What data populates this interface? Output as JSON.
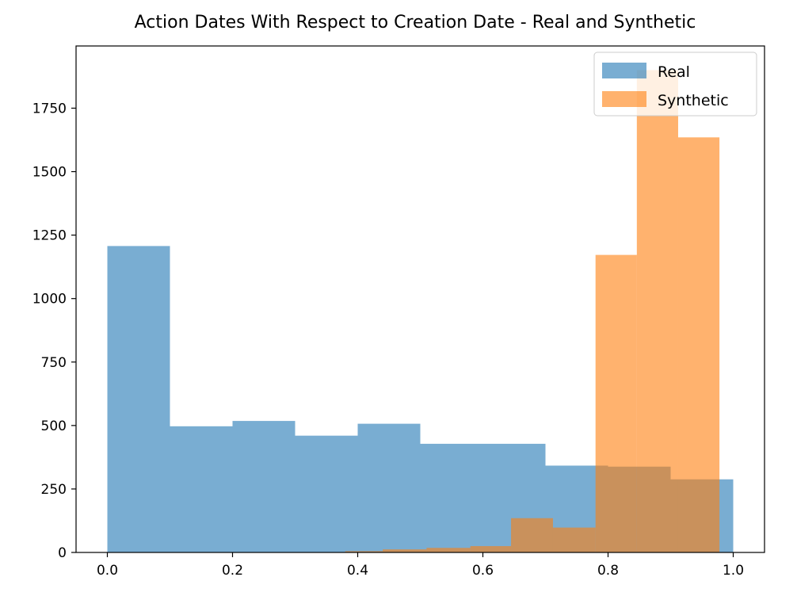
{
  "chart_data": {
    "type": "bar",
    "title": "Action Dates With Respect to Creation Date - Real and Synthetic",
    "xlabel": "",
    "ylabel": "",
    "xlim": [
      -0.05,
      1.05
    ],
    "ylim": [
      0,
      1995
    ],
    "x_ticks": [
      "0.0",
      "0.2",
      "0.4",
      "0.6",
      "0.8",
      "1.0"
    ],
    "y_ticks": [
      "0",
      "250",
      "500",
      "750",
      "1000",
      "1250",
      "1500",
      "1750"
    ],
    "grid": false,
    "legend_position": "top-right",
    "series": [
      {
        "name": "Real",
        "color": "#1f77b4",
        "opacity": 0.6,
        "bin_edges": [
          0.0,
          0.1,
          0.2,
          0.3,
          0.4,
          0.5,
          0.6,
          0.7,
          0.8,
          0.9,
          1.0
        ],
        "values": [
          1207,
          497,
          518,
          460,
          507,
          428,
          428,
          342,
          338,
          288
        ]
      },
      {
        "name": "Synthetic",
        "color": "#ff7f0e",
        "opacity": 0.6,
        "bin_edges": [
          0.38,
          0.44,
          0.51,
          0.58,
          0.645,
          0.712,
          0.78,
          0.846,
          0.912,
          0.978
        ],
        "values": [
          5,
          12,
          18,
          25,
          135,
          98,
          1172,
          1900,
          1635
        ]
      }
    ]
  }
}
